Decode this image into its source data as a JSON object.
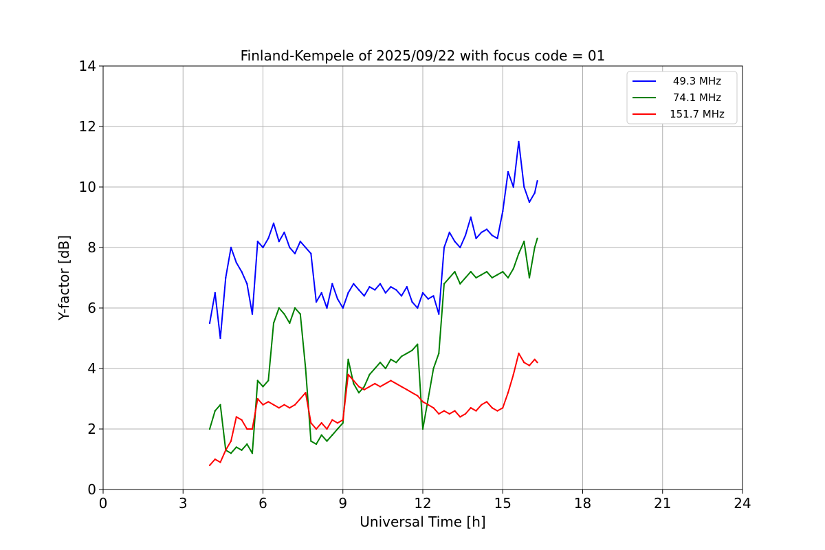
{
  "chart_data": {
    "type": "line",
    "title": "Finland-Kempele of 2025/09/22 with focus code = 01",
    "xlabel": "Universal Time [h]",
    "ylabel": "Y-factor [dB]",
    "xlim": [
      0,
      24
    ],
    "ylim": [
      0,
      14
    ],
    "x_ticks": [
      "0",
      "3",
      "6",
      "9",
      "12",
      "15",
      "18",
      "21",
      "24"
    ],
    "y_ticks": [
      "0",
      "2",
      "4",
      "6",
      "8",
      "10",
      "12",
      "14"
    ],
    "grid": true,
    "legend_position": "top-right",
    "series": [
      {
        "name": "49.3 MHz",
        "color": "#0000ff",
        "x": [
          4.0,
          4.2,
          4.4,
          4.6,
          4.8,
          5.0,
          5.2,
          5.4,
          5.6,
          5.8,
          6.0,
          6.2,
          6.4,
          6.6,
          6.8,
          7.0,
          7.2,
          7.4,
          7.6,
          7.8,
          8.0,
          8.2,
          8.4,
          8.6,
          8.8,
          9.0,
          9.2,
          9.4,
          9.6,
          9.8,
          10.0,
          10.2,
          10.4,
          10.6,
          10.8,
          11.0,
          11.2,
          11.4,
          11.6,
          11.8,
          12.0,
          12.2,
          12.4,
          12.6,
          12.8,
          13.0,
          13.2,
          13.4,
          13.6,
          13.8,
          14.0,
          14.2,
          14.4,
          14.6,
          14.8,
          15.0,
          15.2,
          15.4,
          15.6,
          15.8,
          16.0,
          16.2,
          16.3
        ],
        "values": [
          5.5,
          6.5,
          5.0,
          7.0,
          8.0,
          7.5,
          7.2,
          6.8,
          5.8,
          8.2,
          8.0,
          8.3,
          8.8,
          8.2,
          8.5,
          8.0,
          7.8,
          8.2,
          8.0,
          7.8,
          6.2,
          6.5,
          6.0,
          6.8,
          6.3,
          6.0,
          6.5,
          6.8,
          6.6,
          6.4,
          6.7,
          6.6,
          6.8,
          6.5,
          6.7,
          6.6,
          6.4,
          6.7,
          6.2,
          6.0,
          6.5,
          6.3,
          6.4,
          5.8,
          8.0,
          8.5,
          8.2,
          8.0,
          8.4,
          9.0,
          8.3,
          8.5,
          8.6,
          8.4,
          8.3,
          9.2,
          10.5,
          10.0,
          11.5,
          10.0,
          9.5,
          9.8,
          10.2
        ]
      },
      {
        "name": "74.1 MHz",
        "color": "#008000",
        "x": [
          4.0,
          4.2,
          4.4,
          4.6,
          4.8,
          5.0,
          5.2,
          5.4,
          5.6,
          5.8,
          6.0,
          6.2,
          6.4,
          6.6,
          6.8,
          7.0,
          7.2,
          7.4,
          7.6,
          7.8,
          8.0,
          8.2,
          8.4,
          8.6,
          8.8,
          9.0,
          9.2,
          9.4,
          9.6,
          9.8,
          10.0,
          10.2,
          10.4,
          10.6,
          10.8,
          11.0,
          11.2,
          11.4,
          11.6,
          11.8,
          12.0,
          12.2,
          12.4,
          12.6,
          12.8,
          13.0,
          13.2,
          13.4,
          13.6,
          13.8,
          14.0,
          14.2,
          14.4,
          14.6,
          14.8,
          15.0,
          15.2,
          15.4,
          15.6,
          15.8,
          16.0,
          16.2,
          16.3
        ],
        "values": [
          2.0,
          2.6,
          2.8,
          1.3,
          1.2,
          1.4,
          1.3,
          1.5,
          1.2,
          3.6,
          3.4,
          3.6,
          5.5,
          6.0,
          5.8,
          5.5,
          6.0,
          5.8,
          4.0,
          1.6,
          1.5,
          1.8,
          1.6,
          1.8,
          2.0,
          2.2,
          4.3,
          3.5,
          3.2,
          3.4,
          3.8,
          4.0,
          4.2,
          4.0,
          4.3,
          4.2,
          4.4,
          4.5,
          4.6,
          4.8,
          2.0,
          3.0,
          4.0,
          4.5,
          6.8,
          7.0,
          7.2,
          6.8,
          7.0,
          7.2,
          7.0,
          7.1,
          7.2,
          7.0,
          7.1,
          7.2,
          7.0,
          7.3,
          7.8,
          8.2,
          7.0,
          8.0,
          8.3
        ]
      },
      {
        "name": "151.7 MHz",
        "color": "#ff0000",
        "x": [
          4.0,
          4.2,
          4.4,
          4.6,
          4.8,
          5.0,
          5.2,
          5.4,
          5.6,
          5.8,
          6.0,
          6.2,
          6.4,
          6.6,
          6.8,
          7.0,
          7.2,
          7.4,
          7.6,
          7.8,
          8.0,
          8.2,
          8.4,
          8.6,
          8.8,
          9.0,
          9.2,
          9.4,
          9.6,
          9.8,
          10.0,
          10.2,
          10.4,
          10.6,
          10.8,
          11.0,
          11.2,
          11.4,
          11.6,
          11.8,
          12.0,
          12.2,
          12.4,
          12.6,
          12.8,
          13.0,
          13.2,
          13.4,
          13.6,
          13.8,
          14.0,
          14.2,
          14.4,
          14.6,
          14.8,
          15.0,
          15.2,
          15.4,
          15.6,
          15.8,
          16.0,
          16.2,
          16.3
        ],
        "values": [
          0.8,
          1.0,
          0.9,
          1.3,
          1.6,
          2.4,
          2.3,
          2.0,
          2.0,
          3.0,
          2.8,
          2.9,
          2.8,
          2.7,
          2.8,
          2.7,
          2.8,
          3.0,
          3.2,
          2.2,
          2.0,
          2.2,
          2.0,
          2.3,
          2.2,
          2.3,
          3.8,
          3.6,
          3.4,
          3.3,
          3.4,
          3.5,
          3.4,
          3.5,
          3.6,
          3.5,
          3.4,
          3.3,
          3.2,
          3.1,
          2.9,
          2.8,
          2.7,
          2.5,
          2.6,
          2.5,
          2.6,
          2.4,
          2.5,
          2.7,
          2.6,
          2.8,
          2.9,
          2.7,
          2.6,
          2.7,
          3.2,
          3.8,
          4.5,
          4.2,
          4.1,
          4.3,
          4.2
        ]
      }
    ]
  }
}
